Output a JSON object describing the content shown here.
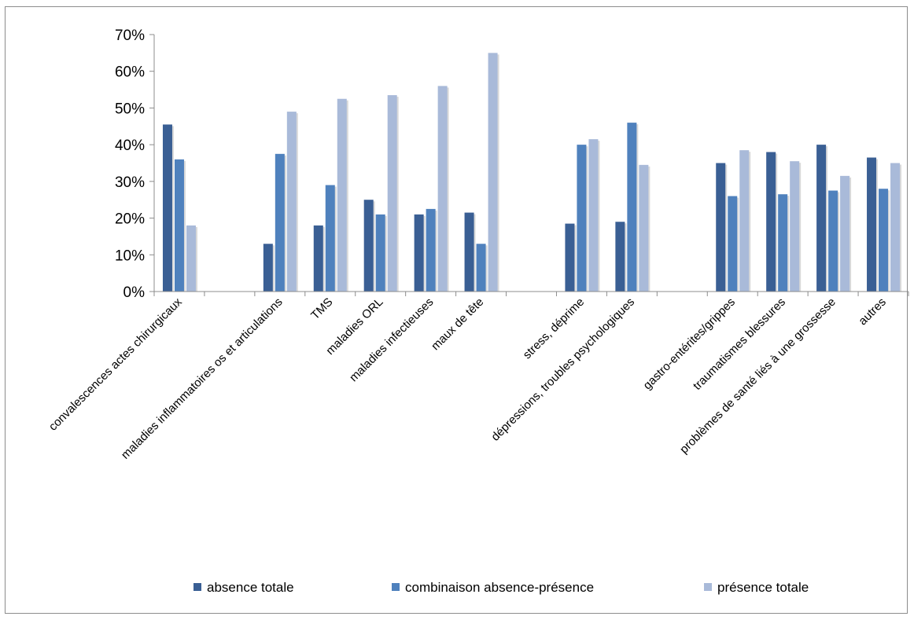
{
  "chart_data": {
    "type": "bar",
    "categories": [
      "convalescences actes chirurgicaux",
      "",
      "maladies inflammatoires os et articulations",
      "TMS",
      "maladies ORL",
      "maladies infectieuses",
      "maux de tête",
      "",
      "stress, déprime",
      "dépressions, troubles psychologiques",
      "",
      "gastro-entérites/grippes",
      "traumatismes blessures",
      "problèmes de santé liés à une grossesse",
      "autres"
    ],
    "series": [
      {
        "name": "absence totale",
        "color": "#3a5f94",
        "values": [
          45.5,
          null,
          13,
          18,
          25,
          21,
          21.5,
          null,
          18.5,
          19,
          null,
          35,
          38,
          40,
          36.5
        ]
      },
      {
        "name": "combinaison absence-présence",
        "color": "#4f81bd",
        "values": [
          36,
          null,
          37.5,
          29,
          21,
          22.5,
          13,
          null,
          40,
          46,
          null,
          26,
          26.5,
          27.5,
          28
        ]
      },
      {
        "name": "présence totale",
        "color": "#a9bad9",
        "values": [
          18,
          null,
          49,
          52.5,
          53.5,
          56,
          65,
          null,
          41.5,
          34.5,
          null,
          38.5,
          35.5,
          31.5,
          35
        ]
      }
    ],
    "y_ticks": [
      "0%",
      "10%",
      "20%",
      "30%",
      "40%",
      "50%",
      "60%",
      "70%"
    ],
    "ylim": [
      0,
      70
    ],
    "grid": false,
    "legend_position": "bottom"
  }
}
